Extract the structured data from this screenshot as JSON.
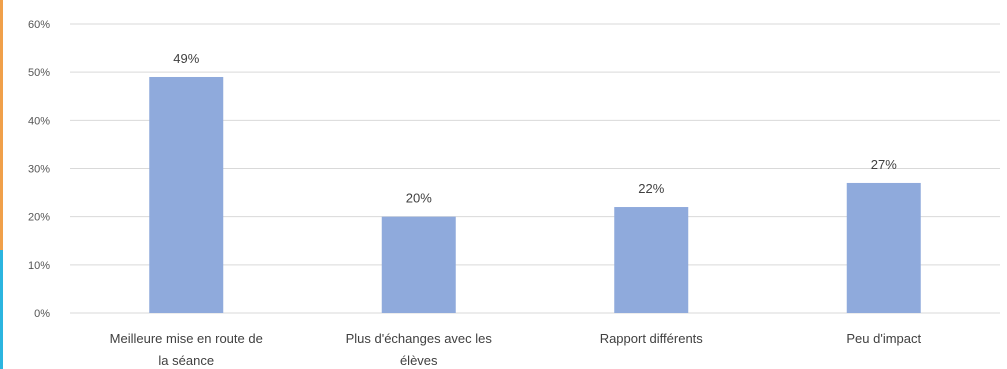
{
  "chart_data": {
    "type": "bar",
    "categories": [
      [
        "Meilleure mise en route de",
        "la séance"
      ],
      [
        "Plus d'échanges avec les",
        "élèves"
      ],
      [
        "Rapport différents"
      ],
      [
        "Peu d'impact"
      ]
    ],
    "values": [
      49,
      20,
      22,
      27
    ],
    "data_labels": [
      "49%",
      "20%",
      "22%",
      "27%"
    ],
    "y_ticks": [
      "0%",
      "10%",
      "20%",
      "30%",
      "40%",
      "50%",
      "60%"
    ],
    "ylim": [
      0,
      60
    ],
    "grid": true,
    "bar_color": "#8faadc",
    "gridline_color": "#d9d9d9",
    "title": "",
    "xlabel": "",
    "ylabel": ""
  }
}
